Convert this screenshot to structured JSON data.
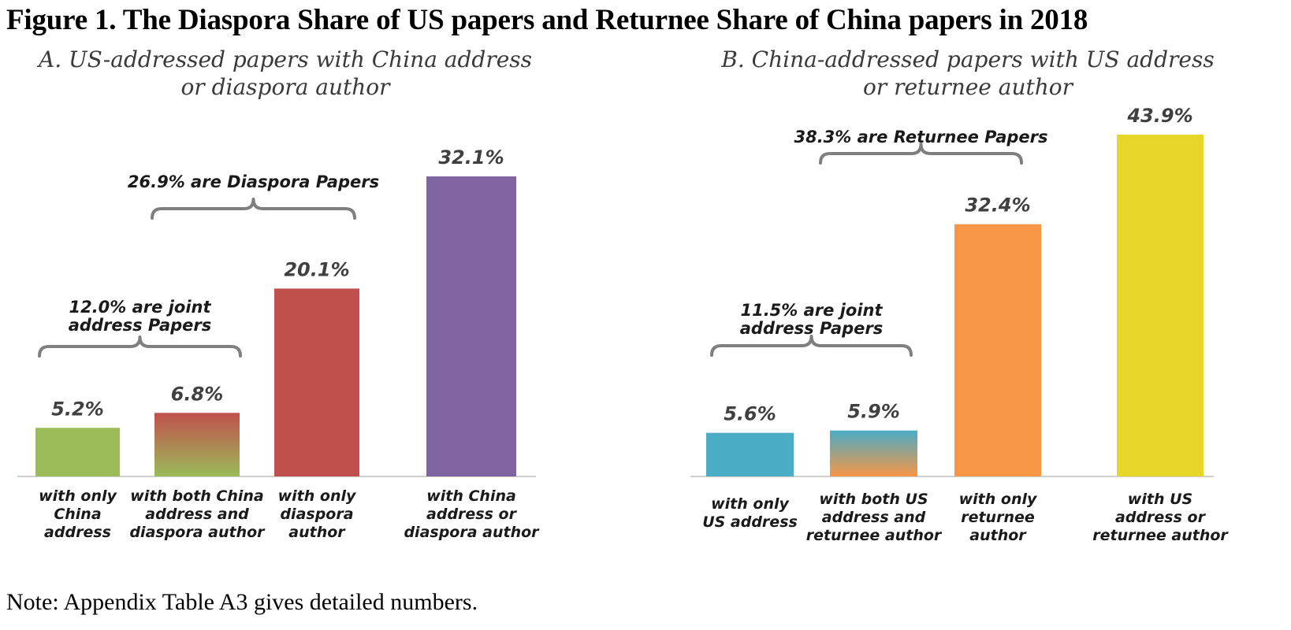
{
  "figure_title": "Figure 1. The Diaspora Share of US papers and Returnee Share of China papers in 2018",
  "note": "Note: Appendix Table A3 gives detailed numbers.",
  "chart_data": [
    {
      "type": "bar",
      "title_lines": [
        "A. US-addressed papers with China address",
        "or diaspora author"
      ],
      "categories": [
        [
          "with only",
          "China",
          "address"
        ],
        [
          "with both China",
          "address and",
          "diaspora author"
        ],
        [
          "with only",
          "diaspora",
          "author"
        ],
        [
          "with China",
          "address or",
          "diaspora author"
        ]
      ],
      "values": [
        5.2,
        6.8,
        20.1,
        32.1
      ],
      "value_labels": [
        "5.2%",
        "6.8%",
        "20.1%",
        "32.1%"
      ],
      "colors": [
        "#9bbb59",
        "gradient:#c0504d:#9bbb59",
        "#c0504d",
        "#8064a2"
      ],
      "ylim": [
        0,
        32.1
      ],
      "grid": false,
      "brackets": [
        {
          "from": 0,
          "to": 1,
          "lines": [
            "12.0% are joint",
            "address Papers"
          ]
        },
        {
          "from": 1,
          "to": 2,
          "lines": [
            "26.9% are Diaspora Papers"
          ]
        }
      ]
    },
    {
      "type": "bar",
      "title_lines": [
        "B. China-addressed papers with US address",
        "or returnee author"
      ],
      "categories": [
        [
          "with only",
          "US address"
        ],
        [
          "with both US",
          "address and",
          "returnee author"
        ],
        [
          "with only",
          "returnee",
          "author"
        ],
        [
          "with US",
          "address or",
          "returnee author"
        ]
      ],
      "values": [
        5.6,
        5.9,
        32.4,
        43.9
      ],
      "value_labels": [
        "5.6%",
        "5.9%",
        "32.4%",
        "43.9%"
      ],
      "colors": [
        "#4bacc6",
        "gradient:#4bacc6:#f79646",
        "#f79646",
        "#e8d52a"
      ],
      "ylim": [
        0,
        43.9
      ],
      "grid": false,
      "brackets": [
        {
          "from": 0,
          "to": 1,
          "lines": [
            "11.5% are joint",
            "address Papers"
          ]
        },
        {
          "from": 1,
          "to": 2,
          "lines": [
            "38.3% are Returnee Papers"
          ]
        }
      ]
    }
  ]
}
